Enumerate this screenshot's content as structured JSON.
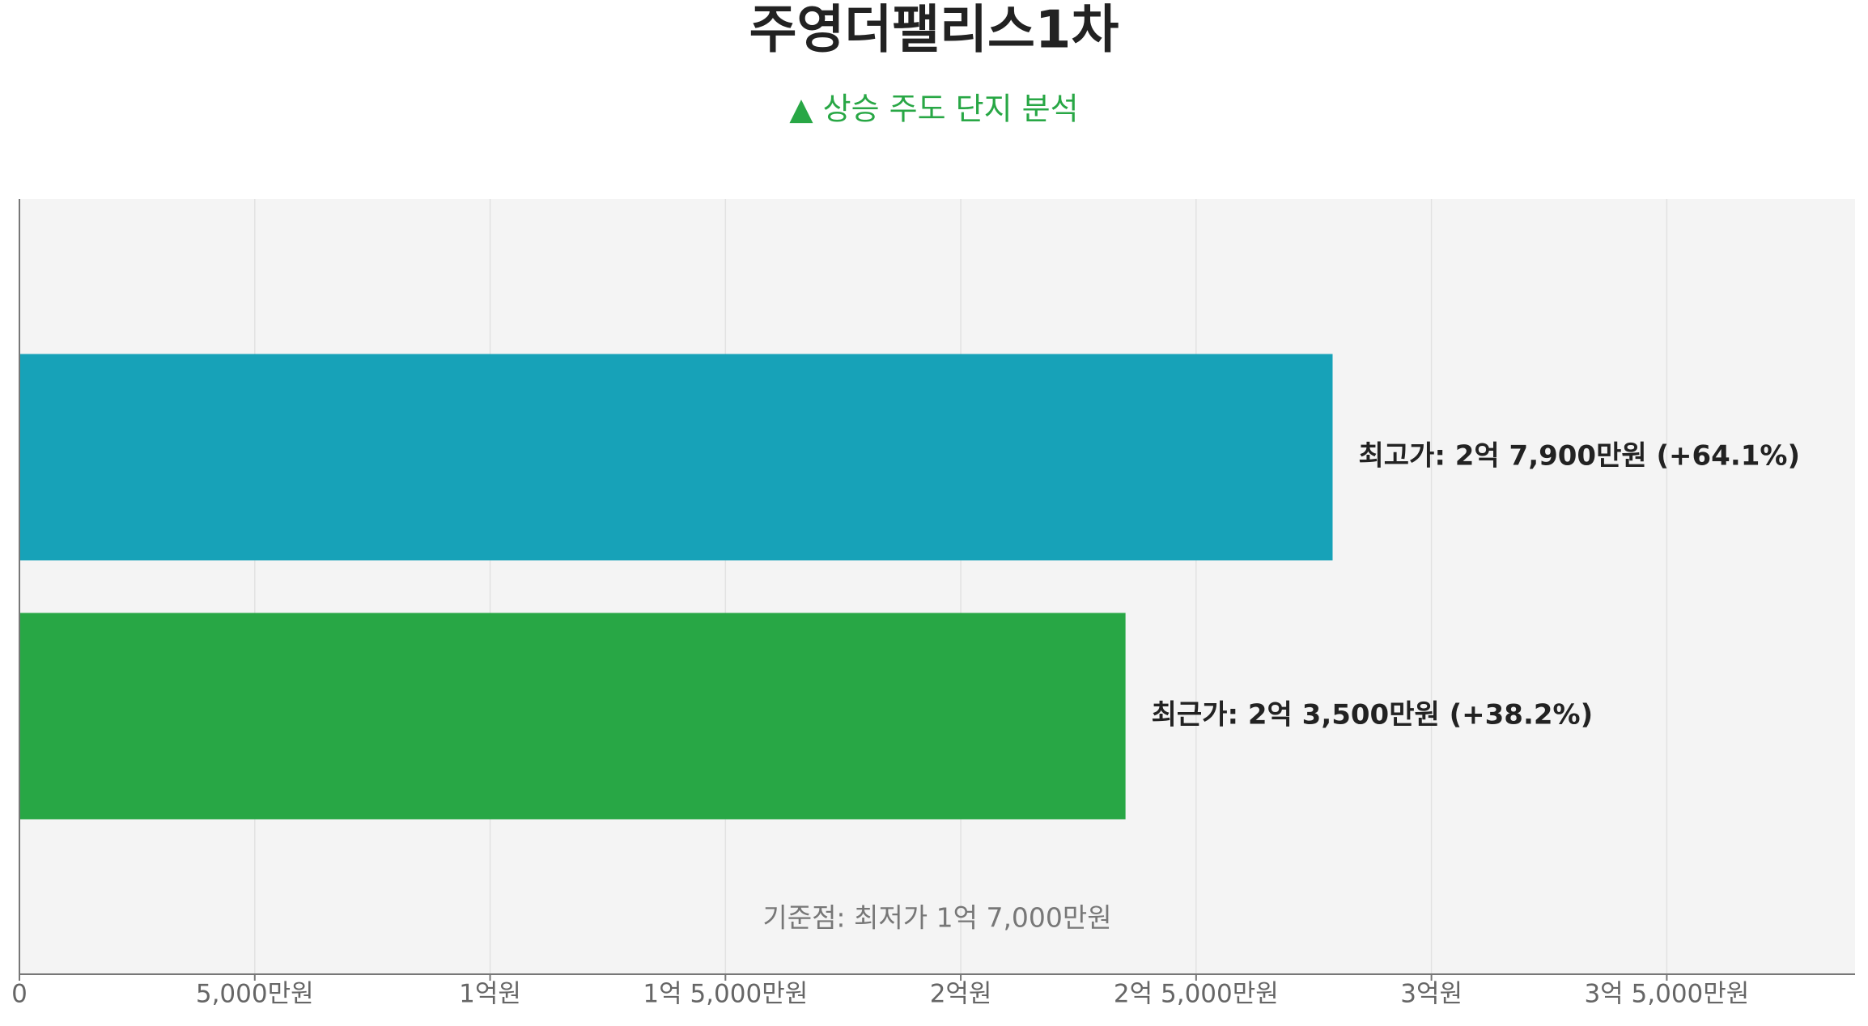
{
  "chart_data": {
    "type": "hbar",
    "title": "주영더팰리스1차",
    "subtitle": "▲ 상승 주도 단지 분석",
    "annotation": "기준점: 최저가 1억 7,000만원",
    "values": [
      27900,
      23500
    ],
    "value_labels": [
      "최고가: 2억 7,900만원 (+64.1%)",
      "최근가: 2억 3,500만원 (+38.2%)"
    ],
    "colors": [
      "#17a2b8",
      "#28a745"
    ],
    "xlim": [
      0,
      39000
    ],
    "xticks": [
      0,
      {
        "value": 5000,
        "label": "5,000만원"
      },
      {
        "value": 10000,
        "label": "1억원"
      },
      {
        "value": 15000,
        "label": "1억 5,000만원"
      },
      {
        "value": 20000,
        "label": "2억원"
      },
      {
        "value": 25000,
        "label": "2억 5,000만원"
      },
      {
        "value": 30000,
        "label": "3억원"
      },
      {
        "value": 35000,
        "label": "3억 5,000만원"
      }
    ],
    "grid": true
  }
}
